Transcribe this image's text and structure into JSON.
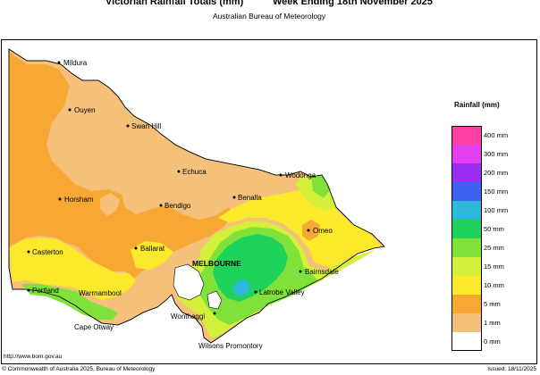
{
  "header": {
    "title": "Victorian Rainfall Totals (mm)",
    "period": "Week Ending 18th November 2025",
    "subtitle": "Australian Bureau of Meteorology"
  },
  "places": [
    {
      "name": "Mildura",
      "bold": false
    },
    {
      "name": "Ouyen",
      "bold": false
    },
    {
      "name": "Swan Hill",
      "bold": false
    },
    {
      "name": "Echuca",
      "bold": false
    },
    {
      "name": "Wodonga",
      "bold": false
    },
    {
      "name": "Benalla",
      "bold": false
    },
    {
      "name": "Horsham",
      "bold": false
    },
    {
      "name": "Bendigo",
      "bold": false
    },
    {
      "name": "Omeo",
      "bold": false
    },
    {
      "name": "Casterton",
      "bold": false
    },
    {
      "name": "Ballarat",
      "bold": false
    },
    {
      "name": "MELBOURNE",
      "bold": true
    },
    {
      "name": "Bairnsdale",
      "bold": false
    },
    {
      "name": "Portland",
      "bold": false
    },
    {
      "name": "Warrnambool",
      "bold": false
    },
    {
      "name": "Latrobe Valley",
      "bold": false
    },
    {
      "name": "Wonthaggi",
      "bold": false
    },
    {
      "name": "Cape Otway",
      "bold": false
    },
    {
      "name": "Wilsons Promontory",
      "bold": false
    }
  ],
  "legend": {
    "title": "Rainfall (mm)",
    "items": [
      {
        "label": "400 mm",
        "color": "#ff3fa6"
      },
      {
        "label": "300 mm",
        "color": "#e23ff0"
      },
      {
        "label": "200 mm",
        "color": "#9a2ef2"
      },
      {
        "label": "150 mm",
        "color": "#3c62f0"
      },
      {
        "label": "100 mm",
        "color": "#2fb8d8"
      },
      {
        "label": "50 mm",
        "color": "#1fd25a"
      },
      {
        "label": "25 mm",
        "color": "#7fe13a"
      },
      {
        "label": "15 mm",
        "color": "#d4f03a"
      },
      {
        "label": "10 mm",
        "color": "#fbe92b"
      },
      {
        "label": "5 mm",
        "color": "#f7a733"
      },
      {
        "label": "1 mm",
        "color": "#f4c07a"
      },
      {
        "label": "0 mm",
        "color": "#ffffff"
      }
    ]
  },
  "footer": {
    "url": "http://www.bom.gov.au",
    "copyright": "© Commonwealth of Australia 2025, Bureau of Meteorology",
    "issued": "Issued: 18/11/2025"
  }
}
